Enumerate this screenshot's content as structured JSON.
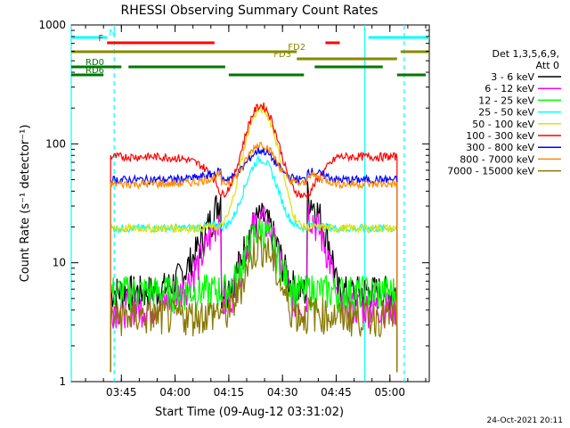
{
  "chart_data": {
    "type": "line",
    "title": "RHESSI Observing Summary Count Rates",
    "xlabel": "Start Time (09-Aug-12 03:31:02)",
    "ylabel": "Count Rate (s⁻¹ detector⁻¹)",
    "x_unit": "minutes",
    "xlim": [
      "03:31",
      "05:11"
    ],
    "ylim": [
      1,
      1000
    ],
    "y_scale": "log",
    "x_ticks": [
      "03:45",
      "04:00",
      "04:15",
      "04:30",
      "04:45",
      "05:00"
    ],
    "y_ticks": [
      "1",
      "10",
      "100",
      "1000"
    ],
    "timestamp": "24-Oct-2021 20:11",
    "legend": {
      "title_line1": "Det 1,3,5,6,9,",
      "title_line2": "Att 0",
      "placement": "right"
    },
    "series": [
      {
        "name": "3 - 6 keV",
        "color": "#000000",
        "base": 5.8,
        "peak": 24,
        "shoulder": 38
      },
      {
        "name": "6 - 12 keV",
        "color": "#ff00ff",
        "base": 4.3,
        "peak": 23,
        "shoulder": 28
      },
      {
        "name": "12 - 25 keV",
        "color": "#00ff00",
        "base": 5.8,
        "peak": 19,
        "shoulder": 6
      },
      {
        "name": "25 - 50 keV",
        "color": "#00ffff",
        "base": 19.5,
        "peak": 74,
        "shoulder": 21
      },
      {
        "name": "50 - 100 keV",
        "color": "#e0e000",
        "base": 19.5,
        "peak": 195,
        "shoulder": 20
      },
      {
        "name": "100 - 300 keV",
        "color": "#ff0000",
        "base": 78,
        "peak": 210,
        "shoulder": 36
      },
      {
        "name": "300 - 800 keV",
        "color": "#0000ff",
        "base": 50,
        "peak": 88,
        "shoulder": 60
      },
      {
        "name": "800 - 7000 keV",
        "color": "#ff8800",
        "base": 46,
        "peak": 100,
        "shoulder": 56
      },
      {
        "name": "7000 - 15000 keV",
        "color": "#887700",
        "base": 3.6,
        "peak": 14,
        "shoulder": 4
      }
    ],
    "flags": [
      {
        "label": "N",
        "color": "#00ffff",
        "segments": [
          [
            "03:31",
            "03:41"
          ],
          [
            "04:54",
            "05:11"
          ]
        ],
        "level": 0
      },
      {
        "label": "F",
        "color": "#ff0000",
        "segments": [
          [
            "03:41",
            "04:11"
          ],
          [
            "04:42",
            "04:46"
          ]
        ],
        "level": 1
      },
      {
        "label": "FD2",
        "color": "#888800",
        "segments": [
          [
            "03:31",
            "04:34"
          ],
          [
            "05:03",
            "05:11"
          ]
        ],
        "level": 2
      },
      {
        "label": "FD3",
        "color": "#888800",
        "segments": [
          [
            "04:34",
            "05:02"
          ]
        ],
        "level": 3
      },
      {
        "label": "RD0",
        "color": "#007700",
        "segments": [
          [
            "03:31",
            "03:45"
          ],
          [
            "03:47",
            "04:14"
          ],
          [
            "04:39",
            "04:58"
          ]
        ],
        "level": 4
      },
      {
        "label": "RD6",
        "color": "#007700",
        "segments": [
          [
            "03:31",
            "03:40"
          ],
          [
            "04:15",
            "04:36"
          ],
          [
            "05:02",
            "05:10"
          ]
        ],
        "level": 5
      }
    ],
    "vlines": [
      {
        "t": "03:31",
        "color": "#00ffff",
        "dashed": false
      },
      {
        "t": "03:43",
        "color": "#00ffff",
        "dashed": true
      },
      {
        "t": "04:53",
        "color": "#00ffff",
        "dashed": false
      },
      {
        "t": "05:04",
        "color": "#00ffff",
        "dashed": true
      }
    ]
  }
}
